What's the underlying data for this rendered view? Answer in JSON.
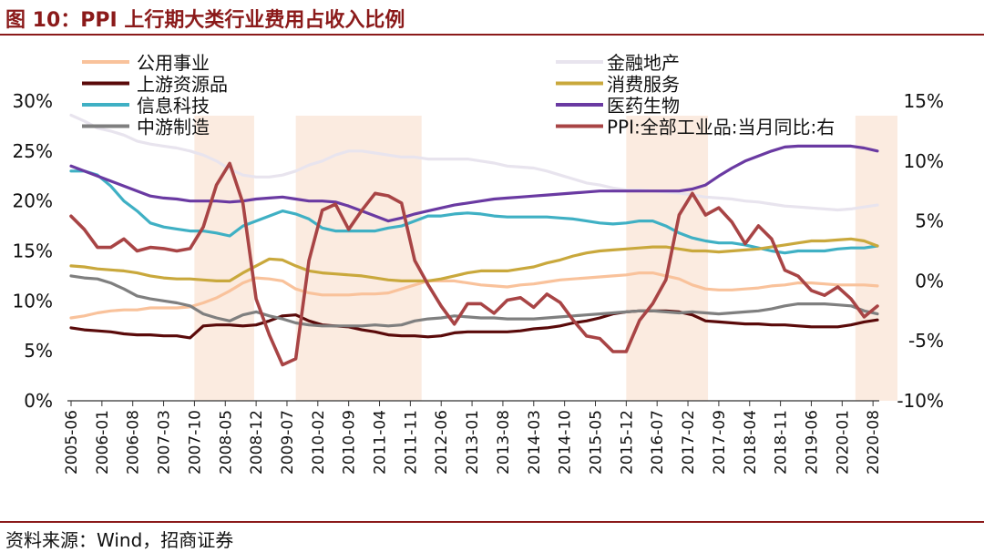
{
  "title": "图 10：PPI 上行期大类行业费用占收入比例",
  "source": "资料来源：Wind，招商证券",
  "chart_data": {
    "type": "line",
    "x": [
      "2005-06",
      "2005-09",
      "2005-12",
      "2006-03",
      "2006-06",
      "2006-09",
      "2006-12",
      "2007-03",
      "2007-06",
      "2007-09",
      "2007-12",
      "2008-03",
      "2008-06",
      "2008-09",
      "2008-12",
      "2009-03",
      "2009-06",
      "2009-09",
      "2009-12",
      "2010-03",
      "2010-06",
      "2010-09",
      "2010-12",
      "2011-03",
      "2011-06",
      "2011-09",
      "2011-12",
      "2012-03",
      "2012-06",
      "2012-09",
      "2012-12",
      "2013-03",
      "2013-06",
      "2013-09",
      "2013-12",
      "2014-03",
      "2014-06",
      "2014-09",
      "2014-12",
      "2015-03",
      "2015-06",
      "2015-09",
      "2015-12",
      "2016-03",
      "2016-06",
      "2016-09",
      "2016-12",
      "2017-03",
      "2017-06",
      "2017-09",
      "2017-12",
      "2018-03",
      "2018-06",
      "2018-09",
      "2018-12",
      "2019-03",
      "2019-06",
      "2019-09",
      "2019-12",
      "2020-03",
      "2020-06",
      "2020-09"
    ],
    "x_tick_labels": [
      "2005-06",
      "2006-01",
      "2006-08",
      "2007-03",
      "2007-10",
      "2008-05",
      "2008-12",
      "2009-07",
      "2010-02",
      "2010-09",
      "2011-04",
      "2011-11",
      "2012-06",
      "2013-01",
      "2013-08",
      "2014-03",
      "2014-10",
      "2015-05",
      "2015-12",
      "2016-07",
      "2017-02",
      "2017-09",
      "2018-04",
      "2018-11",
      "2019-06",
      "2020-01",
      "2020-08"
    ],
    "y_left": {
      "min": 0,
      "max": 30,
      "ticks": [
        "0%",
        "5%",
        "10%",
        "15%",
        "20%",
        "25%",
        "30%"
      ]
    },
    "y_right": {
      "min": -10,
      "max": 15,
      "ticks": [
        "-10%",
        "-5%",
        "0%",
        "5%",
        "10%",
        "15%"
      ]
    },
    "shaded_periods": [
      [
        "2007-10",
        "2008-07"
      ],
      [
        "2009-09",
        "2011-09"
      ],
      [
        "2015-12",
        "2017-02"
      ],
      [
        "2020-04",
        "2020-09"
      ]
    ],
    "legend": {
      "left": [
        "公用事业",
        "上游资源品",
        "信息科技",
        "中游制造"
      ],
      "right": [
        "金融地产",
        "消费服务",
        "医药生物",
        "PPI:全部工业品:当月同比:右"
      ]
    },
    "series": [
      {
        "name": "公用事业",
        "color": "#f9c29b",
        "axis": "left",
        "values": [
          8.3,
          8.5,
          8.8,
          9.0,
          9.1,
          9.1,
          9.3,
          9.3,
          9.3,
          9.4,
          9.8,
          10.3,
          11.0,
          11.8,
          12.3,
          12.2,
          12.0,
          11.2,
          10.8,
          10.6,
          10.6,
          10.6,
          10.7,
          10.7,
          10.8,
          11.2,
          11.6,
          12.0,
          12.0,
          12.0,
          11.8,
          11.6,
          11.5,
          11.4,
          11.6,
          11.7,
          11.9,
          12.1,
          12.2,
          12.3,
          12.4,
          12.5,
          12.6,
          12.8,
          12.8,
          12.5,
          12.2,
          11.6,
          11.2,
          11.1,
          11.1,
          11.2,
          11.3,
          11.5,
          11.6,
          11.8,
          11.8,
          11.7,
          11.6,
          11.6,
          11.6,
          11.5
        ]
      },
      {
        "name": "上游资源品",
        "color": "#5a0a0a",
        "axis": "left",
        "values": [
          7.3,
          7.1,
          7.0,
          6.9,
          6.7,
          6.6,
          6.6,
          6.5,
          6.5,
          6.3,
          7.5,
          7.6,
          7.6,
          7.5,
          7.6,
          8.0,
          8.5,
          8.6,
          8.0,
          7.6,
          7.5,
          7.4,
          7.1,
          6.9,
          6.6,
          6.5,
          6.5,
          6.4,
          6.5,
          6.8,
          6.9,
          6.9,
          6.9,
          6.9,
          7.0,
          7.2,
          7.3,
          7.5,
          7.8,
          8.0,
          8.3,
          8.7,
          8.9,
          9.0,
          9.0,
          9.0,
          8.9,
          8.6,
          8.0,
          7.9,
          7.8,
          7.7,
          7.7,
          7.6,
          7.6,
          7.5,
          7.4,
          7.4,
          7.4,
          7.6,
          7.9,
          8.1
        ]
      },
      {
        "name": "信息科技",
        "color": "#3fb0c4",
        "axis": "left",
        "values": [
          23.0,
          23.0,
          22.6,
          21.5,
          20.0,
          19.0,
          17.8,
          17.4,
          17.2,
          17.0,
          17.0,
          16.8,
          16.5,
          17.5,
          18.0,
          18.5,
          19.0,
          18.7,
          18.2,
          17.3,
          17.0,
          17.0,
          17.0,
          17.0,
          17.3,
          17.5,
          18.0,
          18.5,
          18.5,
          18.7,
          18.8,
          18.7,
          18.5,
          18.4,
          18.4,
          18.4,
          18.4,
          18.3,
          18.2,
          18.0,
          17.8,
          17.7,
          17.8,
          18.0,
          18.0,
          17.5,
          16.8,
          16.3,
          16.0,
          15.8,
          15.8,
          15.6,
          15.3,
          15.0,
          14.8,
          15.0,
          15.0,
          15.0,
          15.2,
          15.3,
          15.3,
          15.5
        ]
      },
      {
        "name": "中游制造",
        "color": "#7f7f7f",
        "axis": "left",
        "values": [
          12.5,
          12.3,
          12.2,
          11.8,
          11.2,
          10.5,
          10.2,
          10.0,
          9.8,
          9.5,
          8.7,
          8.3,
          8.0,
          8.6,
          8.9,
          8.5,
          8.2,
          7.8,
          7.6,
          7.5,
          7.5,
          7.5,
          7.5,
          7.6,
          7.5,
          7.6,
          8.0,
          8.2,
          8.3,
          8.5,
          8.4,
          8.3,
          8.3,
          8.2,
          8.2,
          8.2,
          8.3,
          8.4,
          8.5,
          8.6,
          8.7,
          8.8,
          8.9,
          9.0,
          9.0,
          8.9,
          8.8,
          8.9,
          8.8,
          8.7,
          8.8,
          8.9,
          9.0,
          9.2,
          9.5,
          9.7,
          9.7,
          9.7,
          9.6,
          9.5,
          9.0,
          8.7
        ]
      },
      {
        "name": "金融地产",
        "color": "#e8e4ee",
        "axis": "left",
        "values": [
          28.6,
          28.0,
          27.3,
          27.0,
          26.6,
          26.0,
          25.7,
          25.5,
          25.3,
          25.0,
          24.6,
          24.0,
          23.2,
          22.6,
          22.4,
          22.4,
          22.6,
          23.0,
          23.6,
          24.0,
          24.6,
          25.0,
          25.0,
          24.8,
          24.6,
          24.4,
          24.4,
          24.2,
          24.2,
          24.2,
          24.2,
          24.0,
          23.8,
          23.5,
          23.4,
          23.3,
          23.0,
          22.6,
          22.2,
          21.8,
          21.6,
          21.3,
          21.1,
          21.1,
          21.0,
          20.9,
          20.8,
          20.6,
          20.4,
          20.3,
          20.2,
          20.0,
          19.9,
          19.7,
          19.5,
          19.4,
          19.3,
          19.2,
          19.1,
          19.2,
          19.4,
          19.6
        ]
      },
      {
        "name": "消费服务",
        "color": "#c9a83c",
        "axis": "left",
        "values": [
          13.5,
          13.4,
          13.2,
          13.1,
          13.0,
          12.8,
          12.5,
          12.3,
          12.2,
          12.2,
          12.1,
          12.0,
          12.0,
          12.8,
          13.5,
          14.2,
          14.1,
          13.5,
          13.0,
          12.8,
          12.7,
          12.6,
          12.5,
          12.3,
          12.1,
          12.0,
          12.0,
          12.0,
          12.2,
          12.5,
          12.8,
          13.0,
          13.0,
          13.0,
          13.2,
          13.4,
          13.8,
          14.1,
          14.5,
          14.8,
          15.0,
          15.1,
          15.2,
          15.3,
          15.4,
          15.4,
          15.2,
          15.0,
          15.0,
          14.9,
          15.0,
          15.1,
          15.2,
          15.4,
          15.6,
          15.8,
          16.0,
          16.0,
          16.1,
          16.2,
          16.0,
          15.5
        ]
      },
      {
        "name": "医药生物",
        "color": "#6a3aa2",
        "axis": "left",
        "values": [
          23.5,
          23.0,
          22.5,
          22.0,
          21.5,
          21.0,
          20.5,
          20.3,
          20.2,
          20.0,
          20.0,
          20.0,
          19.9,
          20.0,
          20.2,
          20.3,
          20.4,
          20.2,
          20.0,
          20.0,
          19.9,
          19.5,
          19.0,
          18.5,
          18.0,
          18.3,
          18.7,
          19.0,
          19.3,
          19.6,
          19.8,
          20.0,
          20.2,
          20.3,
          20.4,
          20.5,
          20.6,
          20.7,
          20.8,
          20.9,
          21.0,
          21.0,
          21.0,
          21.0,
          21.0,
          21.0,
          21.0,
          21.2,
          21.6,
          22.5,
          23.3,
          24.0,
          24.5,
          25.0,
          25.4,
          25.5,
          25.5,
          25.5,
          25.5,
          25.5,
          25.3,
          25.0
        ]
      },
      {
        "name": "PPI:全部工业品:当月同比:右",
        "color": "#a84445",
        "axis": "right",
        "values": [
          5.4,
          4.3,
          2.8,
          2.8,
          3.5,
          2.5,
          2.8,
          2.7,
          2.5,
          2.7,
          4.5,
          8.0,
          9.8,
          6.5,
          -1.5,
          -4.5,
          -7.0,
          -6.5,
          1.7,
          5.9,
          6.4,
          4.3,
          5.9,
          7.3,
          7.1,
          6.5,
          1.7,
          -0.3,
          -2.1,
          -3.6,
          -1.9,
          -1.9,
          -2.7,
          -1.6,
          -1.4,
          -2.2,
          -1.1,
          -1.8,
          -3.3,
          -4.6,
          -4.8,
          -5.9,
          -5.9,
          -3.3,
          -1.9,
          0.1,
          5.5,
          7.3,
          5.5,
          6.1,
          4.9,
          3.1,
          4.6,
          3.5,
          0.9,
          0.4,
          -0.8,
          -1.2,
          -0.5,
          -1.5,
          -3.0,
          -2.1
        ]
      }
    ]
  }
}
